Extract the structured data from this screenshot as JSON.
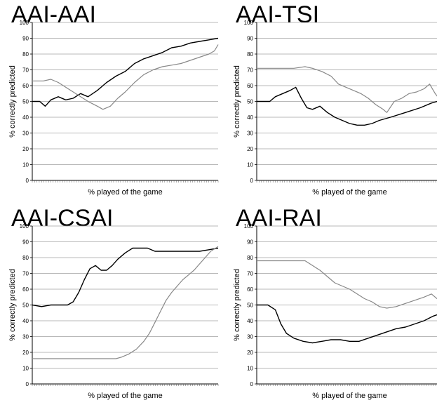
{
  "chart_data": [
    {
      "type": "line",
      "title": "AAI-AAI",
      "xlabel": "% played of the game",
      "ylabel": "% correctly predicted",
      "ylim": [
        0,
        100
      ],
      "yticks": [
        "0",
        "10",
        "20",
        "30",
        "40",
        "50",
        "60",
        "70",
        "80",
        "90",
        "100"
      ],
      "grid": true,
      "series": [
        {
          "color": "#000000",
          "points": [
            [
              0,
              50
            ],
            [
              4,
              50
            ],
            [
              7,
              47
            ],
            [
              10,
              51
            ],
            [
              14,
              53
            ],
            [
              18,
              51
            ],
            [
              22,
              52
            ],
            [
              26,
              55
            ],
            [
              30,
              53
            ],
            [
              35,
              57
            ],
            [
              40,
              62
            ],
            [
              45,
              66
            ],
            [
              50,
              69
            ],
            [
              55,
              74
            ],
            [
              60,
              77
            ],
            [
              65,
              79
            ],
            [
              70,
              81
            ],
            [
              75,
              84
            ],
            [
              80,
              85
            ],
            [
              85,
              87
            ],
            [
              90,
              88
            ],
            [
              95,
              89
            ],
            [
              100,
              90
            ]
          ]
        },
        {
          "color": "#888888",
          "points": [
            [
              0,
              63
            ],
            [
              6,
              63
            ],
            [
              10,
              64
            ],
            [
              14,
              62
            ],
            [
              18,
              59
            ],
            [
              22,
              56
            ],
            [
              26,
              53
            ],
            [
              30,
              50
            ],
            [
              35,
              47
            ],
            [
              38,
              45
            ],
            [
              42,
              47
            ],
            [
              46,
              52
            ],
            [
              50,
              56
            ],
            [
              55,
              62
            ],
            [
              60,
              67
            ],
            [
              65,
              70
            ],
            [
              70,
              72
            ],
            [
              75,
              73
            ],
            [
              80,
              74
            ],
            [
              85,
              76
            ],
            [
              90,
              78
            ],
            [
              95,
              80
            ],
            [
              98,
              82
            ],
            [
              100,
              86
            ]
          ]
        }
      ]
    },
    {
      "type": "line",
      "title": "AAI-TSI",
      "xlabel": "% played of the game",
      "ylabel": "% correctly predicted",
      "ylim": [
        0,
        100
      ],
      "yticks": [
        "0",
        "10",
        "20",
        "30",
        "40",
        "50",
        "60",
        "70",
        "80",
        "90",
        "100"
      ],
      "grid": true,
      "series": [
        {
          "color": "#000000",
          "points": [
            [
              0,
              50
            ],
            [
              7,
              50
            ],
            [
              10,
              53
            ],
            [
              14,
              55
            ],
            [
              18,
              57
            ],
            [
              21,
              59
            ],
            [
              24,
              52
            ],
            [
              27,
              46
            ],
            [
              30,
              45
            ],
            [
              34,
              47
            ],
            [
              38,
              43
            ],
            [
              42,
              40
            ],
            [
              46,
              38
            ],
            [
              50,
              36
            ],
            [
              54,
              35
            ],
            [
              58,
              35
            ],
            [
              62,
              36
            ],
            [
              66,
              38
            ],
            [
              72,
              40
            ],
            [
              80,
              43
            ],
            [
              88,
              46
            ],
            [
              94,
              49
            ],
            [
              100,
              51
            ]
          ]
        },
        {
          "color": "#888888",
          "points": [
            [
              0,
              71
            ],
            [
              10,
              71
            ],
            [
              20,
              71
            ],
            [
              26,
              72
            ],
            [
              30,
              71
            ],
            [
              35,
              69
            ],
            [
              40,
              66
            ],
            [
              44,
              61
            ],
            [
              48,
              59
            ],
            [
              52,
              57
            ],
            [
              56,
              55
            ],
            [
              60,
              52
            ],
            [
              64,
              48
            ],
            [
              68,
              45
            ],
            [
              70,
              43
            ],
            [
              74,
              50
            ],
            [
              78,
              52
            ],
            [
              82,
              55
            ],
            [
              86,
              56
            ],
            [
              90,
              58
            ],
            [
              93,
              61
            ],
            [
              96,
              55
            ],
            [
              100,
              49
            ]
          ]
        }
      ]
    },
    {
      "type": "line",
      "title": "AAI-CSAI",
      "xlabel": "% played of the game",
      "ylabel": "% correctly predicted",
      "ylim": [
        0,
        100
      ],
      "yticks": [
        "0",
        "10",
        "20",
        "30",
        "40",
        "50",
        "60",
        "70",
        "80",
        "90",
        "100"
      ],
      "grid": true,
      "series": [
        {
          "color": "#000000",
          "points": [
            [
              0,
              50
            ],
            [
              5,
              49
            ],
            [
              10,
              50
            ],
            [
              15,
              50
            ],
            [
              19,
              50
            ],
            [
              22,
              52
            ],
            [
              25,
              58
            ],
            [
              28,
              66
            ],
            [
              31,
              73
            ],
            [
              34,
              75
            ],
            [
              37,
              72
            ],
            [
              40,
              72
            ],
            [
              43,
              75
            ],
            [
              46,
              79
            ],
            [
              50,
              83
            ],
            [
              54,
              86
            ],
            [
              58,
              86
            ],
            [
              62,
              86
            ],
            [
              66,
              84
            ],
            [
              70,
              84
            ],
            [
              75,
              84
            ],
            [
              80,
              84
            ],
            [
              85,
              84
            ],
            [
              90,
              84
            ],
            [
              95,
              85
            ],
            [
              100,
              86
            ]
          ]
        },
        {
          "color": "#888888",
          "points": [
            [
              0,
              16
            ],
            [
              10,
              16
            ],
            [
              20,
              16
            ],
            [
              30,
              16
            ],
            [
              40,
              16
            ],
            [
              45,
              16
            ],
            [
              48,
              17
            ],
            [
              52,
              19
            ],
            [
              56,
              22
            ],
            [
              60,
              27
            ],
            [
              63,
              32
            ],
            [
              66,
              39
            ],
            [
              69,
              46
            ],
            [
              72,
              53
            ],
            [
              75,
              58
            ],
            [
              78,
              62
            ],
            [
              81,
              66
            ],
            [
              84,
              69
            ],
            [
              87,
              72
            ],
            [
              90,
              76
            ],
            [
              93,
              80
            ],
            [
              96,
              84
            ],
            [
              100,
              87
            ]
          ]
        }
      ]
    },
    {
      "type": "line",
      "title": "AAI-RAI",
      "xlabel": "% played of the game",
      "ylabel": "% correctly predicted",
      "ylim": [
        0,
        100
      ],
      "yticks": [
        "0",
        "10",
        "20",
        "30",
        "40",
        "50",
        "60",
        "70",
        "80",
        "90",
        "100"
      ],
      "grid": true,
      "series": [
        {
          "color": "#000000",
          "points": [
            [
              0,
              50
            ],
            [
              6,
              50
            ],
            [
              10,
              47
            ],
            [
              13,
              38
            ],
            [
              16,
              32
            ],
            [
              20,
              29
            ],
            [
              25,
              27
            ],
            [
              30,
              26
            ],
            [
              35,
              27
            ],
            [
              40,
              28
            ],
            [
              45,
              28
            ],
            [
              50,
              27
            ],
            [
              55,
              27
            ],
            [
              60,
              29
            ],
            [
              65,
              31
            ],
            [
              70,
              33
            ],
            [
              75,
              35
            ],
            [
              80,
              36
            ],
            [
              85,
              38
            ],
            [
              90,
              40
            ],
            [
              95,
              43
            ],
            [
              100,
              45
            ]
          ]
        },
        {
          "color": "#888888",
          "points": [
            [
              0,
              78
            ],
            [
              10,
              78
            ],
            [
              20,
              78
            ],
            [
              26,
              78
            ],
            [
              30,
              75
            ],
            [
              34,
              72
            ],
            [
              38,
              68
            ],
            [
              42,
              64
            ],
            [
              46,
              62
            ],
            [
              50,
              60
            ],
            [
              54,
              57
            ],
            [
              58,
              54
            ],
            [
              62,
              52
            ],
            [
              66,
              49
            ],
            [
              70,
              48
            ],
            [
              75,
              49
            ],
            [
              80,
              51
            ],
            [
              85,
              53
            ],
            [
              90,
              55
            ],
            [
              94,
              57
            ],
            [
              97,
              54
            ],
            [
              100,
              52
            ]
          ]
        }
      ]
    }
  ]
}
